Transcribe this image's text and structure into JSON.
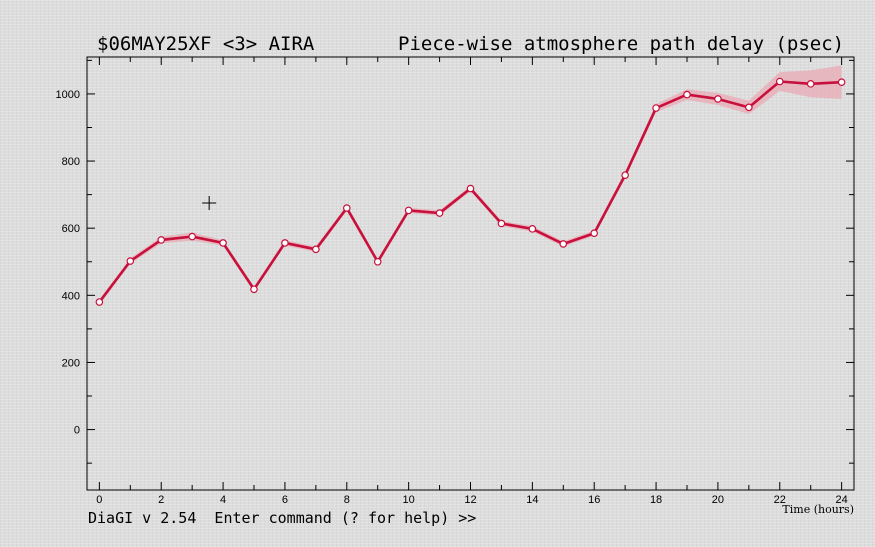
{
  "status_bar": {
    "prompt": "DiaGI v 2.54  Enter command (? for help) >>"
  },
  "chart_data": {
    "type": "line",
    "title_left": "$06MAY25XF <3>  AIRA",
    "title_right": "Piece-wise atmosphere path delay (psec)",
    "xlabel": "Time (hours)",
    "ylabel": "",
    "xlim": [
      -0.4,
      24.4
    ],
    "ylim": [
      -180,
      1110
    ],
    "x_ticks": [
      0,
      2,
      4,
      6,
      8,
      10,
      12,
      14,
      16,
      18,
      20,
      22,
      24
    ],
    "y_ticks": [
      0,
      200,
      400,
      600,
      800,
      1000
    ],
    "grid": false,
    "legend": "none",
    "line_color": "#c8103c",
    "band_color": "#e9a9b6",
    "series": [
      {
        "x": [
          0,
          1,
          2,
          3,
          4,
          5,
          6,
          7,
          8,
          9,
          10,
          11,
          12,
          13,
          14,
          15,
          16,
          17,
          18,
          19,
          20,
          21,
          22,
          23,
          24
        ],
        "values": [
          380,
          502,
          565,
          575,
          556,
          418,
          556,
          537,
          660,
          500,
          653,
          645,
          718,
          614,
          598,
          553,
          585,
          758,
          958,
          998,
          985,
          960,
          1037,
          1030,
          1035
        ],
        "errors": [
          8,
          8,
          10,
          12,
          8,
          8,
          8,
          8,
          8,
          8,
          8,
          8,
          8,
          8,
          8,
          8,
          8,
          10,
          12,
          16,
          18,
          20,
          28,
          40,
          50
        ]
      }
    ],
    "cursor": {
      "x": 3.55,
      "y": 675
    }
  }
}
